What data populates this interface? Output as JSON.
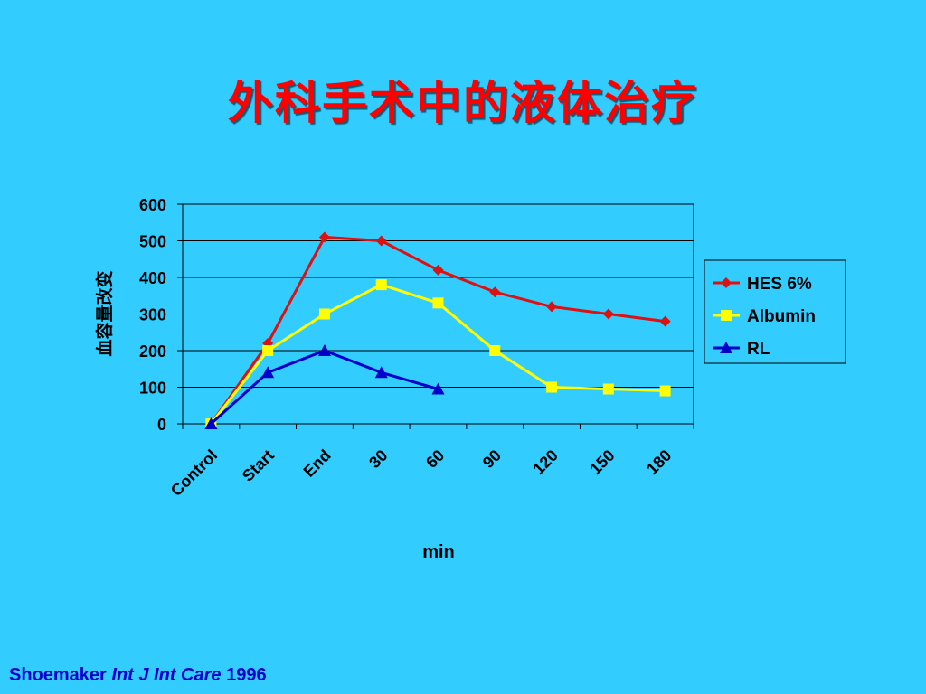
{
  "slide": {
    "title": "外科手术中的液体治疗"
  },
  "chart_data": {
    "type": "line",
    "title": "",
    "xlabel": "min",
    "ylabel": "血容量改变",
    "ylim": [
      0,
      600
    ],
    "yticks": [
      0,
      100,
      200,
      300,
      400,
      500,
      600
    ],
    "categories": [
      "Control",
      "Start",
      "End",
      "30",
      "60",
      "90",
      "120",
      "150",
      "180"
    ],
    "grid": "horizontal",
    "legend_position": "right",
    "series": [
      {
        "name": "HES 6%",
        "color": "#dd1111",
        "marker": "diamond",
        "values": [
          0,
          220,
          510,
          500,
          420,
          360,
          320,
          300,
          280
        ]
      },
      {
        "name": "Albumin",
        "color": "#ffff00",
        "marker": "square",
        "values": [
          0,
          200,
          300,
          380,
          330,
          200,
          100,
          95,
          90
        ]
      },
      {
        "name": "RL",
        "color": "#0000cc",
        "marker": "triangle",
        "values": [
          0,
          140,
          200,
          140,
          95,
          null,
          null,
          null,
          null
        ]
      }
    ]
  },
  "footer": {
    "author": "Shoemaker ",
    "journal": "Int J Int Care",
    "year": " 1996"
  }
}
